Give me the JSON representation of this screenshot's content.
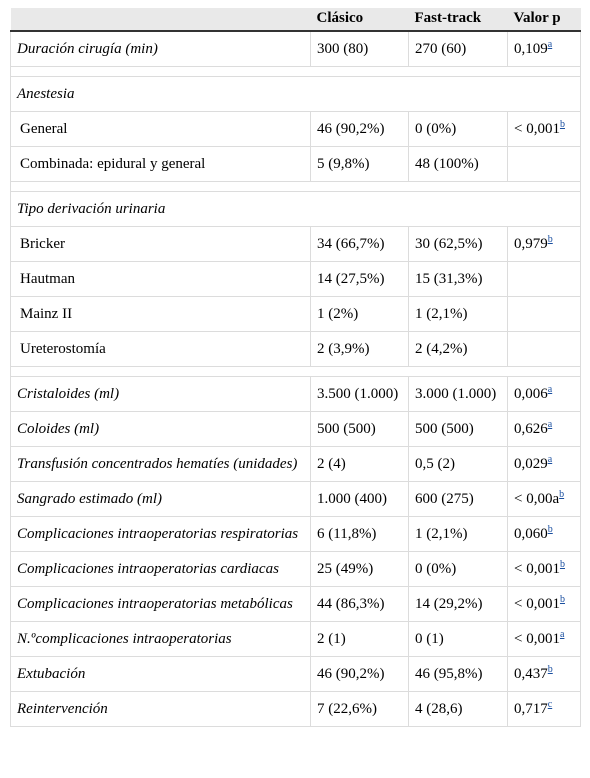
{
  "header": {
    "col1": "",
    "col2": "Clásico",
    "col3": "Fast-track",
    "col4": "Valor p"
  },
  "rows": [
    {
      "type": "row",
      "label": "Duración cirugía (min)",
      "italic": true,
      "c": "300 (80)",
      "f": "270 (60)",
      "p": "0,109",
      "sup": "a"
    },
    {
      "type": "gap"
    },
    {
      "type": "section",
      "label": "Anestesia"
    },
    {
      "type": "row",
      "label": "General",
      "italic": false,
      "c": "46 (90,2%)",
      "f": "0 (0%)",
      "p": "< 0,001",
      "sup": "b"
    },
    {
      "type": "row",
      "label": "Combinada: epidural y general",
      "italic": false,
      "c": "5 (9,8%)",
      "f": "48 (100%)",
      "p": "",
      "sup": ""
    },
    {
      "type": "gap"
    },
    {
      "type": "section",
      "label": "Tipo derivación urinaria"
    },
    {
      "type": "row",
      "label": "Bricker",
      "italic": false,
      "c": "34 (66,7%)",
      "f": "30 (62,5%)",
      "p": "0,979",
      "sup": "b"
    },
    {
      "type": "row",
      "label": "Hautman",
      "italic": false,
      "c": "14 (27,5%)",
      "f": "15 (31,3%)",
      "p": "",
      "sup": ""
    },
    {
      "type": "row",
      "label": "Mainz II",
      "italic": false,
      "c": "1 (2%)",
      "f": "1 (2,1%)",
      "p": "",
      "sup": ""
    },
    {
      "type": "row",
      "label": "Ureterostomía",
      "italic": false,
      "c": "2 (3,9%)",
      "f": "2 (4,2%)",
      "p": "",
      "sup": ""
    },
    {
      "type": "gap"
    },
    {
      "type": "row",
      "label": "Cristaloides (ml)",
      "italic": true,
      "c": "3.500 (1.000)",
      "f": "3.000 (1.000)",
      "p": "0,006",
      "sup": "a"
    },
    {
      "type": "row",
      "label": "Coloides (ml)",
      "italic": true,
      "c": "500 (500)",
      "f": "500 (500)",
      "p": "0,626",
      "sup": "a"
    },
    {
      "type": "row",
      "label": "Transfusión concentrados hematíes (unidades)",
      "italic": true,
      "c": "2 (4)",
      "f": "0,5 (2)",
      "p": "0,029",
      "sup": "a"
    },
    {
      "type": "row",
      "label": "Sangrado estimado (ml)",
      "italic": true,
      "c": "1.000 (400)",
      "f": "600 (275)",
      "p": "< 0,00a",
      "sup": "b"
    },
    {
      "type": "row",
      "label": "Complicaciones intraoperatorias respiratorias",
      "italic": true,
      "c": "6 (11,8%)",
      "f": "1 (2,1%)",
      "p": "0,060",
      "sup": "b"
    },
    {
      "type": "row",
      "label": "Complicaciones intraoperatorias cardiacas",
      "italic": true,
      "c": "25 (49%)",
      "f": "0 (0%)",
      "p": "< 0,001",
      "sup": "b"
    },
    {
      "type": "row",
      "label": "Complicaciones intraoperatorias metabólicas",
      "italic": true,
      "c": "44 (86,3%)",
      "f": "14 (29,2%)",
      "p": "< 0,001",
      "sup": "b"
    },
    {
      "type": "row",
      "label": "N.ºcomplicaciones intraoperatorias",
      "italic": true,
      "c": "2 (1)",
      "f": "0 (1)",
      "p": "< 0,001",
      "sup": "a"
    },
    {
      "type": "row",
      "label": "Extubación",
      "italic": true,
      "c": "46 (90,2%)",
      "f": "46 (95,8%)",
      "p": "0,437",
      "sup": "b"
    },
    {
      "type": "row",
      "label": "Reintervención",
      "italic": true,
      "c": "7 (22,6%)",
      "f": "4 (28,6)",
      "p": "0,717",
      "sup": "c"
    }
  ]
}
